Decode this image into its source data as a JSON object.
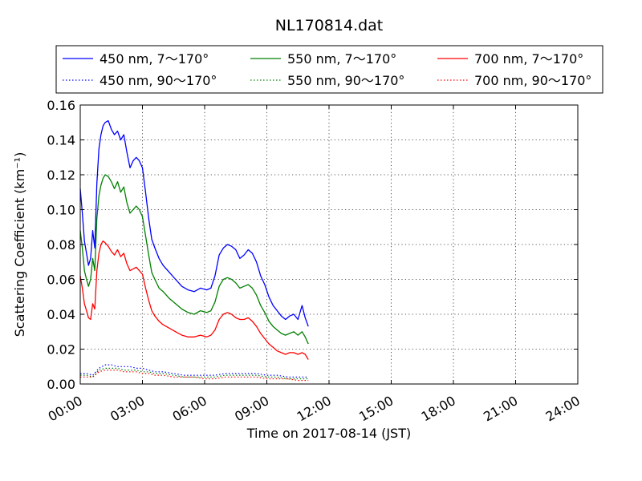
{
  "chart_data": {
    "type": "line",
    "title": "NL170814.dat",
    "xlabel": "Time on 2017-08-14 (JST)",
    "ylabel": "Scattering Coefficient (km⁻¹)",
    "x_unit": "hours",
    "xlim": [
      0,
      24
    ],
    "ylim": [
      0,
      0.16
    ],
    "x_tick_values": [
      0,
      3,
      6,
      9,
      12,
      15,
      18,
      21,
      24
    ],
    "x_tick_labels": [
      "00:00",
      "03:00",
      "06:00",
      "09:00",
      "12:00",
      "15:00",
      "18:00",
      "21:00",
      "24:00"
    ],
    "y_tick_values": [
      0,
      0.02,
      0.04,
      0.06,
      0.08,
      0.1,
      0.12,
      0.14,
      0.16
    ],
    "y_tick_labels": [
      "0.00",
      "0.02",
      "0.04",
      "0.06",
      "0.08",
      "0.10",
      "0.12",
      "0.14",
      "0.16"
    ],
    "grid": true,
    "legend_position": "top, above plot, 3 columns",
    "series": [
      {
        "name": "450 nm, 7～170°",
        "color": "#0000ff",
        "style": "solid",
        "x": [
          0.0,
          0.1,
          0.2,
          0.3,
          0.4,
          0.5,
          0.6,
          0.7,
          0.8,
          0.9,
          1.0,
          1.1,
          1.2,
          1.35,
          1.5,
          1.65,
          1.8,
          1.95,
          2.1,
          2.25,
          2.4,
          2.55,
          2.7,
          2.85,
          3.0,
          3.15,
          3.3,
          3.45,
          3.6,
          3.8,
          4.0,
          4.3,
          4.6,
          4.9,
          5.2,
          5.5,
          5.8,
          6.1,
          6.3,
          6.5,
          6.7,
          6.9,
          7.1,
          7.3,
          7.5,
          7.7,
          7.9,
          8.1,
          8.3,
          8.5,
          8.7,
          8.9,
          9.1,
          9.3,
          9.5,
          9.7,
          9.9,
          10.1,
          10.3,
          10.5,
          10.7,
          10.85,
          11.0
        ],
        "values": [
          0.112,
          0.098,
          0.082,
          0.075,
          0.068,
          0.072,
          0.088,
          0.078,
          0.115,
          0.135,
          0.143,
          0.148,
          0.15,
          0.151,
          0.146,
          0.143,
          0.145,
          0.14,
          0.143,
          0.133,
          0.124,
          0.128,
          0.13,
          0.128,
          0.124,
          0.11,
          0.095,
          0.083,
          0.078,
          0.072,
          0.068,
          0.064,
          0.06,
          0.056,
          0.054,
          0.053,
          0.055,
          0.054,
          0.055,
          0.062,
          0.074,
          0.078,
          0.08,
          0.079,
          0.077,
          0.072,
          0.074,
          0.077,
          0.075,
          0.07,
          0.062,
          0.057,
          0.05,
          0.045,
          0.042,
          0.039,
          0.037,
          0.039,
          0.04,
          0.037,
          0.045,
          0.038,
          0.033
        ]
      },
      {
        "name": "550 nm, 7～170°",
        "color": "#008000",
        "style": "solid",
        "x": [
          0.0,
          0.1,
          0.2,
          0.3,
          0.4,
          0.5,
          0.6,
          0.7,
          0.8,
          0.9,
          1.0,
          1.1,
          1.2,
          1.35,
          1.5,
          1.65,
          1.8,
          1.95,
          2.1,
          2.25,
          2.4,
          2.55,
          2.7,
          2.85,
          3.0,
          3.15,
          3.3,
          3.45,
          3.6,
          3.8,
          4.0,
          4.3,
          4.6,
          4.9,
          5.2,
          5.5,
          5.8,
          6.1,
          6.3,
          6.5,
          6.7,
          6.9,
          7.1,
          7.3,
          7.5,
          7.7,
          7.9,
          8.1,
          8.3,
          8.5,
          8.7,
          8.9,
          9.1,
          9.3,
          9.5,
          9.7,
          9.9,
          10.1,
          10.3,
          10.5,
          10.7,
          10.85,
          11.0
        ],
        "values": [
          0.088,
          0.078,
          0.065,
          0.06,
          0.056,
          0.06,
          0.072,
          0.065,
          0.095,
          0.108,
          0.114,
          0.118,
          0.12,
          0.119,
          0.116,
          0.112,
          0.116,
          0.11,
          0.113,
          0.104,
          0.098,
          0.1,
          0.102,
          0.1,
          0.096,
          0.085,
          0.074,
          0.064,
          0.06,
          0.055,
          0.053,
          0.049,
          0.046,
          0.043,
          0.041,
          0.04,
          0.042,
          0.041,
          0.042,
          0.047,
          0.056,
          0.06,
          0.061,
          0.06,
          0.058,
          0.055,
          0.056,
          0.057,
          0.055,
          0.051,
          0.045,
          0.041,
          0.036,
          0.033,
          0.031,
          0.029,
          0.028,
          0.029,
          0.03,
          0.028,
          0.03,
          0.027,
          0.023
        ]
      },
      {
        "name": "700 nm, 7～170°",
        "color": "#ff0000",
        "style": "solid",
        "x": [
          0.0,
          0.1,
          0.2,
          0.3,
          0.4,
          0.5,
          0.6,
          0.7,
          0.8,
          0.9,
          1.0,
          1.1,
          1.2,
          1.35,
          1.5,
          1.65,
          1.8,
          1.95,
          2.1,
          2.25,
          2.4,
          2.55,
          2.7,
          2.85,
          3.0,
          3.15,
          3.3,
          3.45,
          3.6,
          3.8,
          4.0,
          4.3,
          4.6,
          4.9,
          5.2,
          5.5,
          5.8,
          6.1,
          6.3,
          6.5,
          6.7,
          6.9,
          7.1,
          7.3,
          7.5,
          7.7,
          7.9,
          8.1,
          8.3,
          8.5,
          8.7,
          8.9,
          9.1,
          9.3,
          9.5,
          9.7,
          9.9,
          10.1,
          10.3,
          10.5,
          10.7,
          10.85,
          11.0
        ],
        "values": [
          0.062,
          0.055,
          0.046,
          0.042,
          0.038,
          0.037,
          0.046,
          0.043,
          0.065,
          0.075,
          0.08,
          0.082,
          0.081,
          0.079,
          0.076,
          0.074,
          0.077,
          0.073,
          0.075,
          0.069,
          0.065,
          0.066,
          0.067,
          0.065,
          0.063,
          0.055,
          0.048,
          0.042,
          0.039,
          0.036,
          0.034,
          0.032,
          0.03,
          0.028,
          0.027,
          0.027,
          0.028,
          0.027,
          0.028,
          0.031,
          0.037,
          0.04,
          0.041,
          0.04,
          0.038,
          0.037,
          0.037,
          0.038,
          0.036,
          0.033,
          0.029,
          0.026,
          0.023,
          0.021,
          0.019,
          0.018,
          0.017,
          0.018,
          0.018,
          0.017,
          0.018,
          0.017,
          0.014
        ]
      },
      {
        "name": "450 nm, 90～170°",
        "color": "#0000ff",
        "style": "dotted",
        "x": [
          0.0,
          0.3,
          0.6,
          0.9,
          1.2,
          1.5,
          1.8,
          2.1,
          2.4,
          2.7,
          3.0,
          3.3,
          3.6,
          4.0,
          4.5,
          5.0,
          5.5,
          6.0,
          6.5,
          7.0,
          7.5,
          8.0,
          8.5,
          9.0,
          9.5,
          10.0,
          10.5,
          11.0
        ],
        "values": [
          0.006,
          0.006,
          0.005,
          0.009,
          0.011,
          0.011,
          0.01,
          0.01,
          0.01,
          0.009,
          0.009,
          0.008,
          0.007,
          0.007,
          0.006,
          0.005,
          0.005,
          0.005,
          0.005,
          0.006,
          0.006,
          0.006,
          0.006,
          0.005,
          0.005,
          0.004,
          0.004,
          0.004
        ]
      },
      {
        "name": "550 nm, 90～170°",
        "color": "#008000",
        "style": "dotted",
        "x": [
          0.0,
          0.3,
          0.6,
          0.9,
          1.2,
          1.5,
          1.8,
          2.1,
          2.4,
          2.7,
          3.0,
          3.3,
          3.6,
          4.0,
          4.5,
          5.0,
          5.5,
          6.0,
          6.5,
          7.0,
          7.5,
          8.0,
          8.5,
          9.0,
          9.5,
          10.0,
          10.5,
          11.0
        ],
        "values": [
          0.005,
          0.005,
          0.004,
          0.008,
          0.009,
          0.009,
          0.009,
          0.008,
          0.008,
          0.008,
          0.007,
          0.007,
          0.006,
          0.006,
          0.005,
          0.004,
          0.004,
          0.004,
          0.004,
          0.005,
          0.005,
          0.005,
          0.005,
          0.004,
          0.004,
          0.003,
          0.003,
          0.003
        ]
      },
      {
        "name": "700 nm, 90～170°",
        "color": "#ff0000",
        "style": "dotted",
        "x": [
          0.0,
          0.3,
          0.6,
          0.9,
          1.2,
          1.5,
          1.8,
          2.1,
          2.4,
          2.7,
          3.0,
          3.3,
          3.6,
          4.0,
          4.5,
          5.0,
          5.5,
          6.0,
          6.5,
          7.0,
          7.5,
          8.0,
          8.5,
          9.0,
          9.5,
          10.0,
          10.5,
          11.0
        ],
        "values": [
          0.004,
          0.004,
          0.004,
          0.007,
          0.008,
          0.008,
          0.008,
          0.007,
          0.007,
          0.007,
          0.006,
          0.006,
          0.005,
          0.005,
          0.004,
          0.004,
          0.004,
          0.003,
          0.003,
          0.004,
          0.004,
          0.004,
          0.004,
          0.003,
          0.003,
          0.003,
          0.002,
          0.002
        ]
      }
    ]
  }
}
